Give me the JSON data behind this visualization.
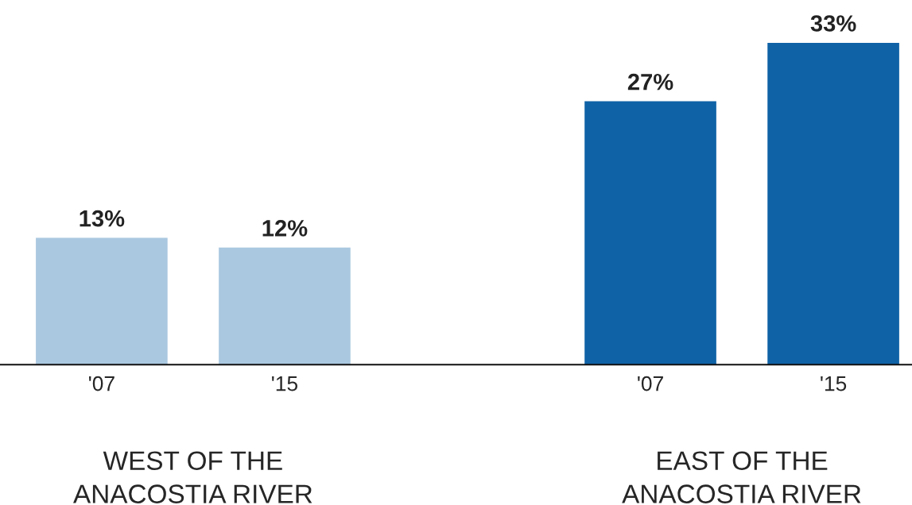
{
  "chart_data": {
    "type": "bar",
    "categories": [
      "'07",
      "'15",
      "'07",
      "'15"
    ],
    "values": [
      13,
      12,
      27,
      33
    ],
    "colors": [
      "#aac8e0",
      "#aac8e0",
      "#0f62a6",
      "#0f62a6"
    ],
    "value_labels": [
      "13%",
      "12%",
      "27%",
      "33%"
    ],
    "annotations": [
      "WEST OF THE\nANACOSTIA RIVER",
      "EAST OF THE\nANACOSTIA RIVER"
    ],
    "grid": false,
    "legend": false
  }
}
